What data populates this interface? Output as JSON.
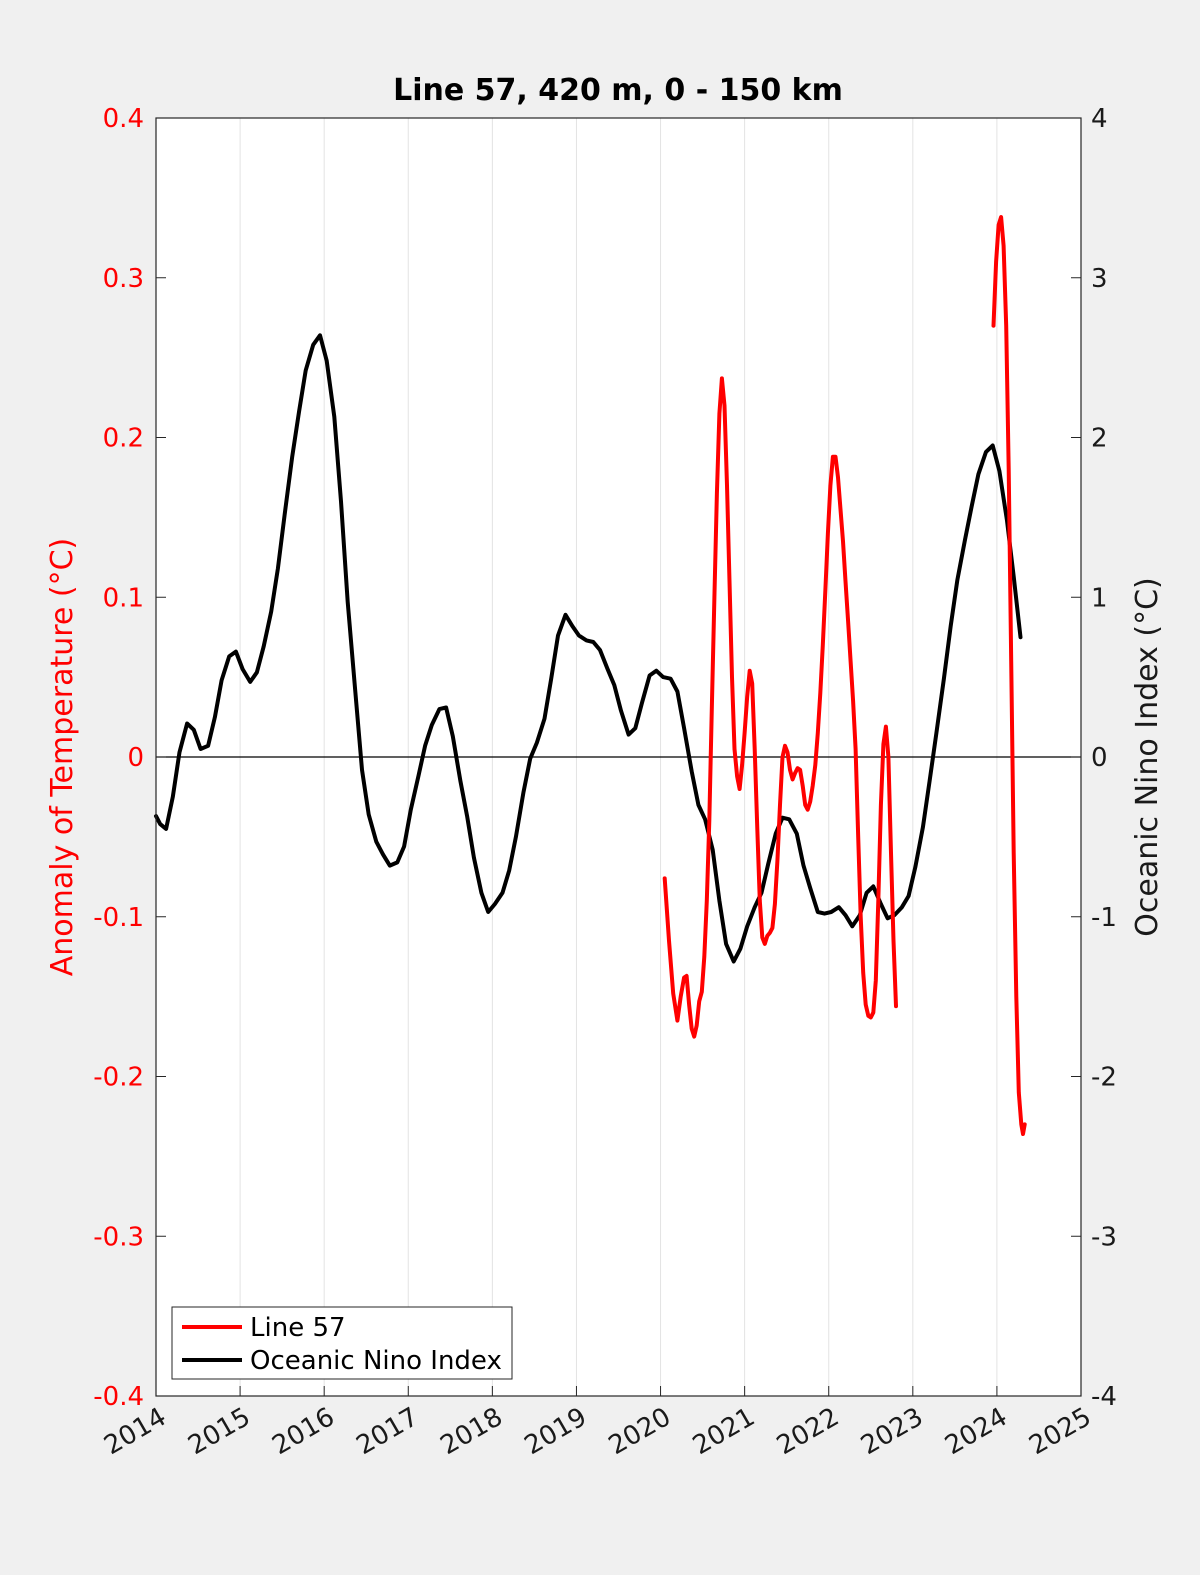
{
  "chart_data": {
    "type": "line",
    "title": "Line 57, 420 m, 0 - 150 km",
    "ylabel_left": "Anomaly of Temperature (°C)",
    "ylabel_right": "Oceanic Nino Index (°C)",
    "xlim": [
      2014,
      2025
    ],
    "ylim_left": [
      -0.4,
      0.4
    ],
    "ylim_right": [
      -4,
      4
    ],
    "x_ticks": [
      "2014",
      "2015",
      "2016",
      "2017",
      "2018",
      "2019",
      "2020",
      "2021",
      "2022",
      "2023",
      "2024",
      "2025"
    ],
    "y_ticks_left": [
      "-0.4",
      "-0.3",
      "-0.2",
      "-0.1",
      "0",
      "0.1",
      "0.2",
      "0.3",
      "0.4"
    ],
    "y_ticks_right": [
      "-4",
      "-3",
      "-2",
      "-1",
      "0",
      "1",
      "2",
      "3",
      "4"
    ],
    "grid": "vertical",
    "legend_placement": "bottom-left",
    "colors": {
      "line57": "#ff0000",
      "oni": "#000000",
      "left_axis": "#ff0000"
    },
    "series": [
      {
        "name": "Oceanic Nino Index",
        "axis": "right",
        "color": "#000000",
        "points": [
          [
            2014.0,
            -0.37
          ],
          [
            2014.05,
            -0.42
          ],
          [
            2014.12,
            -0.45
          ],
          [
            2014.2,
            -0.25
          ],
          [
            2014.28,
            0.03
          ],
          [
            2014.37,
            0.21
          ],
          [
            2014.45,
            0.17
          ],
          [
            2014.53,
            0.05
          ],
          [
            2014.62,
            0.07
          ],
          [
            2014.7,
            0.25
          ],
          [
            2014.78,
            0.48
          ],
          [
            2014.87,
            0.63
          ],
          [
            2014.95,
            0.66
          ],
          [
            2015.03,
            0.55
          ],
          [
            2015.12,
            0.47
          ],
          [
            2015.2,
            0.53
          ],
          [
            2015.28,
            0.69
          ],
          [
            2015.37,
            0.91
          ],
          [
            2015.45,
            1.18
          ],
          [
            2015.53,
            1.52
          ],
          [
            2015.62,
            1.88
          ],
          [
            2015.7,
            2.16
          ],
          [
            2015.78,
            2.42
          ],
          [
            2015.87,
            2.58
          ],
          [
            2015.95,
            2.64
          ],
          [
            2016.03,
            2.48
          ],
          [
            2016.12,
            2.13
          ],
          [
            2016.2,
            1.6
          ],
          [
            2016.28,
            0.97
          ],
          [
            2016.37,
            0.41
          ],
          [
            2016.45,
            -0.08
          ],
          [
            2016.53,
            -0.36
          ],
          [
            2016.62,
            -0.53
          ],
          [
            2016.7,
            -0.61
          ],
          [
            2016.78,
            -0.68
          ],
          [
            2016.87,
            -0.66
          ],
          [
            2016.95,
            -0.56
          ],
          [
            2017.03,
            -0.33
          ],
          [
            2017.12,
            -0.12
          ],
          [
            2017.2,
            0.07
          ],
          [
            2017.28,
            0.2
          ],
          [
            2017.37,
            0.3
          ],
          [
            2017.45,
            0.31
          ],
          [
            2017.53,
            0.13
          ],
          [
            2017.62,
            -0.15
          ],
          [
            2017.7,
            -0.37
          ],
          [
            2017.78,
            -0.63
          ],
          [
            2017.87,
            -0.85
          ],
          [
            2017.95,
            -0.97
          ],
          [
            2018.03,
            -0.92
          ],
          [
            2018.12,
            -0.85
          ],
          [
            2018.2,
            -0.71
          ],
          [
            2018.28,
            -0.5
          ],
          [
            2018.37,
            -0.22
          ],
          [
            2018.45,
            -0.01
          ],
          [
            2018.53,
            0.09
          ],
          [
            2018.62,
            0.24
          ],
          [
            2018.7,
            0.49
          ],
          [
            2018.78,
            0.76
          ],
          [
            2018.87,
            0.89
          ],
          [
            2018.95,
            0.82
          ],
          [
            2019.03,
            0.76
          ],
          [
            2019.12,
            0.73
          ],
          [
            2019.2,
            0.72
          ],
          [
            2019.28,
            0.67
          ],
          [
            2019.37,
            0.55
          ],
          [
            2019.45,
            0.45
          ],
          [
            2019.53,
            0.29
          ],
          [
            2019.62,
            0.14
          ],
          [
            2019.7,
            0.18
          ],
          [
            2019.78,
            0.34
          ],
          [
            2019.87,
            0.51
          ],
          [
            2019.95,
            0.54
          ],
          [
            2020.03,
            0.5
          ],
          [
            2020.12,
            0.49
          ],
          [
            2020.2,
            0.41
          ],
          [
            2020.28,
            0.18
          ],
          [
            2020.37,
            -0.09
          ],
          [
            2020.45,
            -0.3
          ],
          [
            2020.53,
            -0.39
          ],
          [
            2020.62,
            -0.58
          ],
          [
            2020.7,
            -0.9
          ],
          [
            2020.78,
            -1.17
          ],
          [
            2020.87,
            -1.28
          ],
          [
            2020.95,
            -1.2
          ],
          [
            2021.03,
            -1.06
          ],
          [
            2021.12,
            -0.94
          ],
          [
            2021.2,
            -0.85
          ],
          [
            2021.28,
            -0.67
          ],
          [
            2021.37,
            -0.48
          ],
          [
            2021.45,
            -0.38
          ],
          [
            2021.53,
            -0.39
          ],
          [
            2021.62,
            -0.48
          ],
          [
            2021.7,
            -0.68
          ],
          [
            2021.78,
            -0.82
          ],
          [
            2021.87,
            -0.97
          ],
          [
            2021.95,
            -0.98
          ],
          [
            2022.03,
            -0.97
          ],
          [
            2022.12,
            -0.94
          ],
          [
            2022.2,
            -0.99
          ],
          [
            2022.28,
            -1.06
          ],
          [
            2022.37,
            -0.99
          ],
          [
            2022.45,
            -0.85
          ],
          [
            2022.53,
            -0.81
          ],
          [
            2022.62,
            -0.92
          ],
          [
            2022.7,
            -1.01
          ],
          [
            2022.78,
            -0.99
          ],
          [
            2022.87,
            -0.94
          ],
          [
            2022.95,
            -0.87
          ],
          [
            2023.03,
            -0.69
          ],
          [
            2023.12,
            -0.44
          ],
          [
            2023.2,
            -0.15
          ],
          [
            2023.28,
            0.15
          ],
          [
            2023.37,
            0.49
          ],
          [
            2023.45,
            0.82
          ],
          [
            2023.53,
            1.11
          ],
          [
            2023.62,
            1.36
          ],
          [
            2023.7,
            1.57
          ],
          [
            2023.78,
            1.77
          ],
          [
            2023.87,
            1.91
          ],
          [
            2023.95,
            1.95
          ],
          [
            2024.03,
            1.79
          ],
          [
            2024.12,
            1.48
          ],
          [
            2024.2,
            1.13
          ],
          [
            2024.28,
            0.75
          ]
        ]
      },
      {
        "name": "Line 57",
        "axis": "left",
        "color": "#ff0000",
        "segments": [
          [
            [
              2020.05,
              -0.076
            ],
            [
              2020.1,
              -0.115
            ],
            [
              2020.15,
              -0.148
            ],
            [
              2020.2,
              -0.165
            ],
            [
              2020.24,
              -0.15
            ],
            [
              2020.28,
              -0.138
            ],
            [
              2020.31,
              -0.137
            ],
            [
              2020.34,
              -0.155
            ],
            [
              2020.37,
              -0.17
            ],
            [
              2020.4,
              -0.175
            ],
            [
              2020.43,
              -0.168
            ],
            [
              2020.46,
              -0.153
            ],
            [
              2020.49,
              -0.147
            ],
            [
              2020.52,
              -0.125
            ],
            [
              2020.55,
              -0.09
            ],
            [
              2020.58,
              -0.04
            ],
            [
              2020.61,
              0.03
            ],
            [
              2020.64,
              0.1
            ],
            [
              2020.67,
              0.165
            ],
            [
              2020.7,
              0.215
            ],
            [
              2020.73,
              0.237
            ],
            [
              2020.76,
              0.22
            ],
            [
              2020.79,
              0.17
            ],
            [
              2020.82,
              0.11
            ],
            [
              2020.85,
              0.05
            ],
            [
              2020.88,
              0.005
            ],
            [
              2020.91,
              -0.012
            ],
            [
              2020.94,
              -0.02
            ],
            [
              2020.97,
              -0.005
            ],
            [
              2021.0,
              0.015
            ],
            [
              2021.03,
              0.038
            ],
            [
              2021.06,
              0.054
            ],
            [
              2021.09,
              0.046
            ],
            [
              2021.12,
              0.005
            ],
            [
              2021.15,
              -0.045
            ],
            [
              2021.18,
              -0.09
            ],
            [
              2021.21,
              -0.113
            ],
            [
              2021.24,
              -0.117
            ],
            [
              2021.27,
              -0.112
            ],
            [
              2021.3,
              -0.11
            ],
            [
              2021.33,
              -0.107
            ],
            [
              2021.36,
              -0.092
            ],
            [
              2021.39,
              -0.065
            ],
            [
              2021.42,
              -0.03
            ],
            [
              2021.45,
              0.0
            ],
            [
              2021.48,
              0.007
            ],
            [
              2021.51,
              0.003
            ],
            [
              2021.54,
              -0.008
            ],
            [
              2021.57,
              -0.014
            ],
            [
              2021.6,
              -0.01
            ],
            [
              2021.63,
              -0.007
            ],
            [
              2021.66,
              -0.008
            ],
            [
              2021.69,
              -0.018
            ],
            [
              2021.72,
              -0.03
            ],
            [
              2021.75,
              -0.033
            ],
            [
              2021.78,
              -0.028
            ],
            [
              2021.81,
              -0.018
            ],
            [
              2021.84,
              -0.005
            ],
            [
              2021.87,
              0.015
            ],
            [
              2021.9,
              0.04
            ],
            [
              2021.93,
              0.07
            ],
            [
              2021.96,
              0.105
            ],
            [
              2021.99,
              0.14
            ],
            [
              2022.02,
              0.17
            ],
            [
              2022.05,
              0.188
            ],
            [
              2022.08,
              0.188
            ],
            [
              2022.11,
              0.175
            ],
            [
              2022.14,
              0.155
            ],
            [
              2022.17,
              0.135
            ],
            [
              2022.2,
              0.11
            ],
            [
              2022.23,
              0.085
            ],
            [
              2022.26,
              0.06
            ],
            [
              2022.29,
              0.035
            ],
            [
              2022.32,
              0.005
            ],
            [
              2022.35,
              -0.05
            ],
            [
              2022.38,
              -0.1
            ],
            [
              2022.41,
              -0.135
            ],
            [
              2022.44,
              -0.155
            ],
            [
              2022.47,
              -0.162
            ],
            [
              2022.5,
              -0.163
            ],
            [
              2022.53,
              -0.16
            ],
            [
              2022.56,
              -0.14
            ],
            [
              2022.59,
              -0.09
            ],
            [
              2022.62,
              -0.03
            ],
            [
              2022.65,
              0.008
            ],
            [
              2022.68,
              0.019
            ],
            [
              2022.71,
              0.0
            ],
            [
              2022.74,
              -0.06
            ],
            [
              2022.77,
              -0.115
            ],
            [
              2022.8,
              -0.156
            ]
          ],
          [
            [
              2023.96,
              0.27
            ],
            [
              2023.99,
              0.31
            ],
            [
              2024.02,
              0.333
            ],
            [
              2024.05,
              0.338
            ],
            [
              2024.08,
              0.32
            ],
            [
              2024.11,
              0.27
            ],
            [
              2024.14,
              0.18
            ],
            [
              2024.17,
              0.06
            ],
            [
              2024.2,
              -0.06
            ],
            [
              2024.23,
              -0.15
            ],
            [
              2024.26,
              -0.21
            ],
            [
              2024.29,
              -0.23
            ],
            [
              2024.31,
              -0.236
            ],
            [
              2024.33,
              -0.23
            ]
          ]
        ]
      }
    ]
  }
}
